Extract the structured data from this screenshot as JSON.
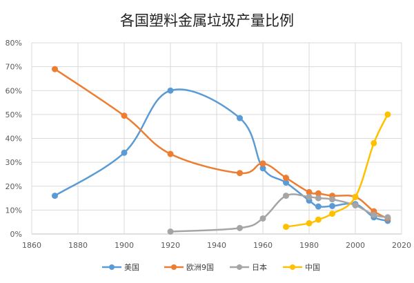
{
  "chart_data": {
    "type": "line",
    "title": "各国塑料金属垃圾产量比例",
    "xlabel": "",
    "ylabel": "",
    "xlim": [
      1860,
      2020
    ],
    "ylim": [
      0,
      80
    ],
    "x_ticks": [
      "1860",
      "1880",
      "1900",
      "1920",
      "1940",
      "1960",
      "1980",
      "2000",
      "2020"
    ],
    "y_ticks": [
      "0%",
      "10%",
      "20%",
      "30%",
      "40%",
      "50%",
      "60%",
      "70%",
      "80%"
    ],
    "grid": true,
    "smooth": true,
    "legend_position": "bottom",
    "series": [
      {
        "name": "美国",
        "color": "#5b9bd5",
        "x": [
          1870,
          1900,
          1920,
          1950,
          1960,
          1970,
          1980,
          1984,
          1990,
          2000,
          2008,
          2014
        ],
        "y": [
          16,
          34,
          60,
          48.5,
          27.5,
          21.5,
          14,
          11.5,
          11.7,
          12.5,
          7,
          5.5
        ]
      },
      {
        "name": "欧洲9国",
        "color": "#ed7d31",
        "x": [
          1870,
          1900,
          1920,
          1950,
          1960,
          1970,
          1980,
          1984,
          1990,
          2000,
          2008,
          2014
        ],
        "y": [
          69,
          49.5,
          33.5,
          25.5,
          29.5,
          23.5,
          17.5,
          17,
          16,
          15.5,
          9.5,
          6.5
        ]
      },
      {
        "name": "日本",
        "color": "#a5a5a5",
        "x": [
          1920,
          1950,
          1960,
          1970,
          1980,
          1984,
          1990,
          2000,
          2008,
          2014
        ],
        "y": [
          1,
          2.5,
          6.5,
          16,
          15.5,
          15,
          14.5,
          12,
          8,
          7
        ]
      },
      {
        "name": "中国",
        "color": "#ffc000",
        "x": [
          1970,
          1980,
          1984,
          1990,
          2000,
          2008,
          2014
        ],
        "y": [
          3,
          4.5,
          6,
          8.5,
          15.5,
          38,
          50
        ]
      }
    ]
  }
}
